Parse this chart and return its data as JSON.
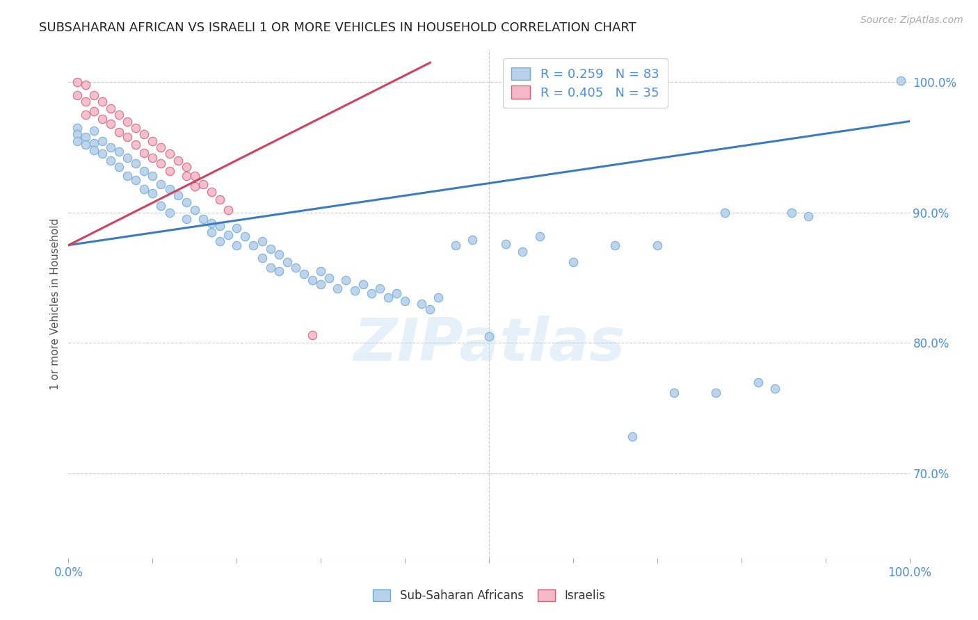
{
  "title": "SUBSAHARAN AFRICAN VS ISRAELI 1 OR MORE VEHICLES IN HOUSEHOLD CORRELATION CHART",
  "source": "Source: ZipAtlas.com",
  "ylabel": "1 or more Vehicles in Household",
  "ytick_labels": [
    "100.0%",
    "90.0%",
    "80.0%",
    "70.0%"
  ],
  "ytick_values": [
    1.0,
    0.9,
    0.8,
    0.7
  ],
  "xlim": [
    0.0,
    1.0
  ],
  "ylim": [
    0.635,
    1.025
  ],
  "legend_entry_blue": "R = 0.259   N = 83",
  "legend_entry_pink": "R = 0.405   N = 35",
  "watermark": "ZIPatlas",
  "blue_line_x": [
    0.0,
    1.0
  ],
  "blue_line_y": [
    0.875,
    0.97
  ],
  "pink_line_x": [
    0.0,
    0.43
  ],
  "pink_line_y": [
    0.875,
    1.015
  ],
  "blue_scatter_x": [
    0.01,
    0.01,
    0.01,
    0.02,
    0.02,
    0.03,
    0.03,
    0.03,
    0.04,
    0.04,
    0.05,
    0.05,
    0.06,
    0.06,
    0.07,
    0.07,
    0.08,
    0.08,
    0.09,
    0.09,
    0.1,
    0.1,
    0.11,
    0.11,
    0.12,
    0.12,
    0.13,
    0.14,
    0.14,
    0.15,
    0.16,
    0.17,
    0.17,
    0.18,
    0.18,
    0.19,
    0.2,
    0.2,
    0.21,
    0.22,
    0.23,
    0.23,
    0.24,
    0.24,
    0.25,
    0.25,
    0.26,
    0.27,
    0.28,
    0.29,
    0.3,
    0.3,
    0.31,
    0.32,
    0.33,
    0.34,
    0.35,
    0.36,
    0.37,
    0.38,
    0.39,
    0.4,
    0.42,
    0.43,
    0.44,
    0.46,
    0.48,
    0.5,
    0.52,
    0.54,
    0.56,
    0.6,
    0.65,
    0.67,
    0.7,
    0.72,
    0.77,
    0.78,
    0.82,
    0.84,
    0.86,
    0.88,
    0.99
  ],
  "blue_scatter_y": [
    0.965,
    0.96,
    0.955,
    0.958,
    0.952,
    0.953,
    0.948,
    0.963,
    0.955,
    0.945,
    0.95,
    0.94,
    0.947,
    0.935,
    0.942,
    0.928,
    0.938,
    0.925,
    0.932,
    0.918,
    0.928,
    0.915,
    0.922,
    0.905,
    0.918,
    0.9,
    0.913,
    0.908,
    0.895,
    0.902,
    0.895,
    0.892,
    0.885,
    0.89,
    0.878,
    0.883,
    0.888,
    0.875,
    0.882,
    0.875,
    0.878,
    0.865,
    0.872,
    0.858,
    0.868,
    0.855,
    0.862,
    0.858,
    0.853,
    0.848,
    0.855,
    0.845,
    0.85,
    0.842,
    0.848,
    0.84,
    0.845,
    0.838,
    0.842,
    0.835,
    0.838,
    0.832,
    0.83,
    0.826,
    0.835,
    0.875,
    0.879,
    0.805,
    0.876,
    0.87,
    0.882,
    0.862,
    0.875,
    0.728,
    0.875,
    0.762,
    0.762,
    0.9,
    0.77,
    0.765,
    0.9,
    0.897,
    1.001
  ],
  "pink_scatter_x": [
    0.01,
    0.01,
    0.02,
    0.02,
    0.02,
    0.03,
    0.03,
    0.04,
    0.04,
    0.05,
    0.05,
    0.06,
    0.06,
    0.07,
    0.07,
    0.08,
    0.08,
    0.09,
    0.09,
    0.1,
    0.1,
    0.11,
    0.11,
    0.12,
    0.12,
    0.13,
    0.14,
    0.14,
    0.15,
    0.15,
    0.16,
    0.17,
    0.18,
    0.29,
    0.19
  ],
  "pink_scatter_y": [
    1.0,
    0.99,
    0.998,
    0.985,
    0.975,
    0.99,
    0.978,
    0.985,
    0.972,
    0.98,
    0.968,
    0.975,
    0.962,
    0.97,
    0.958,
    0.965,
    0.952,
    0.96,
    0.946,
    0.955,
    0.942,
    0.95,
    0.938,
    0.945,
    0.932,
    0.94,
    0.935,
    0.928,
    0.928,
    0.92,
    0.922,
    0.916,
    0.91,
    0.806,
    0.902
  ],
  "dot_size": 80,
  "blue_color": "#b8d0ea",
  "blue_edge_color": "#6baed6",
  "pink_color": "#f4b8c8",
  "pink_edge_color": "#d46080",
  "blue_line_color": "#3a7cbf",
  "pink_line_color": "#d44060",
  "background_color": "#ffffff",
  "grid_color": "#cccccc",
  "title_fontsize": 13,
  "axis_label_color": "#4a90d9",
  "ylabel_color": "#555555"
}
